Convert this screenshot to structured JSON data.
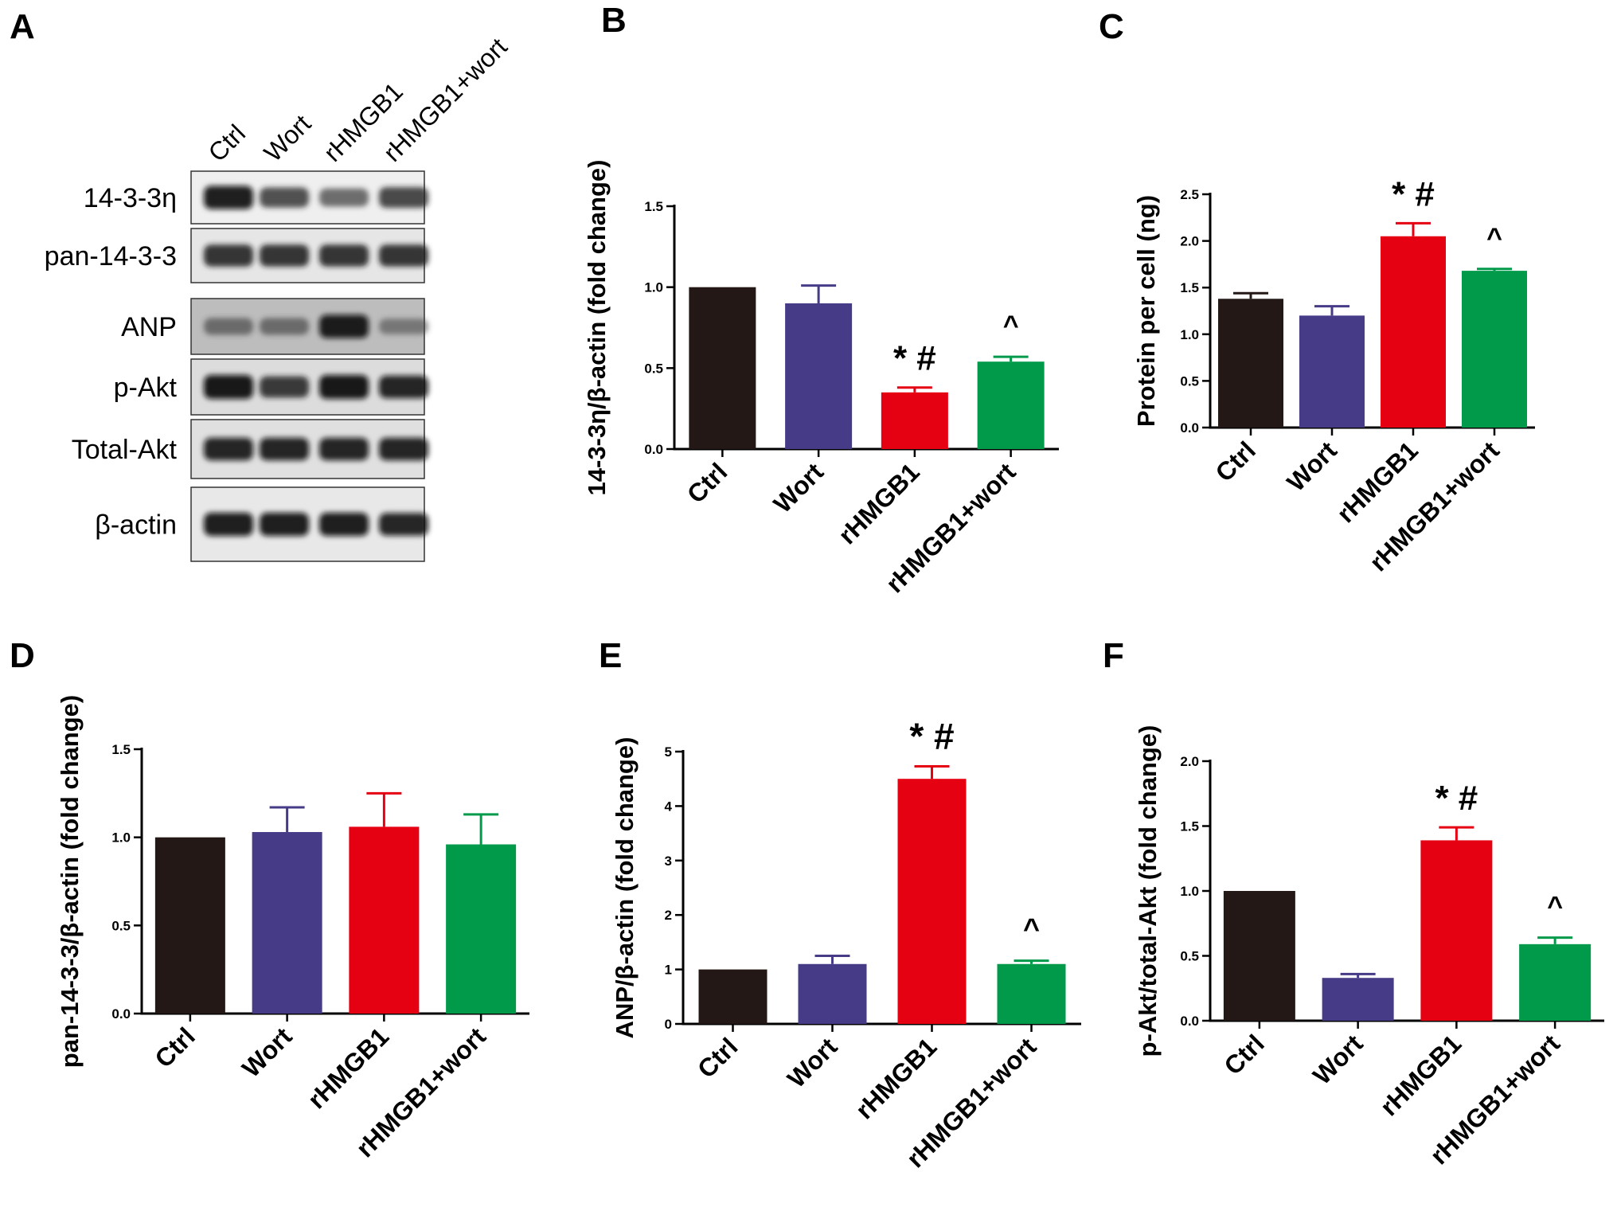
{
  "colors": {
    "Ctrl": "#231815",
    "Wort": "#453b86",
    "rHMGB1": "#e50012",
    "rHMGB1+wort": "#009a4a"
  },
  "blot": {
    "panel_label": "A",
    "lanes": [
      "Ctrl",
      "Wort",
      "rHMGB1",
      "rHMGB1+wort"
    ],
    "rows": [
      {
        "label": "14-3-3η",
        "intensity": [
          0.95,
          0.7,
          0.55,
          0.75
        ],
        "background": "#efefef"
      },
      {
        "label": "pan-14-3-3",
        "intensity": [
          0.85,
          0.85,
          0.85,
          0.85
        ],
        "background": "#e6e6e6"
      },
      {
        "label": "ANP",
        "intensity": [
          0.45,
          0.45,
          0.95,
          0.35
        ],
        "background": "#bdbdbd"
      },
      {
        "label": "p-Akt",
        "intensity": [
          1.0,
          0.8,
          1.0,
          0.9
        ],
        "background": "#dcdcdc"
      },
      {
        "label": "Total-Akt",
        "intensity": [
          0.9,
          0.9,
          0.9,
          0.9
        ],
        "background": "#e0e0e0"
      },
      {
        "label": "β-actin",
        "intensity": [
          0.95,
          0.95,
          0.95,
          0.9
        ],
        "background": "#e8e8e8"
      }
    ]
  },
  "chart_data": [
    {
      "panel_label": "B",
      "type": "bar",
      "categories": [
        "Ctrl",
        "Wort",
        "rHMGB1",
        "rHMGB1+wort"
      ],
      "values": [
        1.0,
        0.9,
        0.35,
        0.54
      ],
      "errors": [
        0,
        0.11,
        0.03,
        0.03
      ],
      "ylabel": "14-3-3η/β-actin (fold change)",
      "ylim": [
        0,
        1.5
      ],
      "yticks": [
        "0.0",
        "0.5",
        "1.0",
        "1.5"
      ],
      "annotations": [
        "",
        "",
        "* #",
        "^"
      ]
    },
    {
      "panel_label": "C",
      "type": "bar",
      "categories": [
        "Ctrl",
        "Wort",
        "rHMGB1",
        "rHMGB1+wort"
      ],
      "values": [
        1.38,
        1.2,
        2.05,
        1.68
      ],
      "errors": [
        0.06,
        0.1,
        0.14,
        0.02
      ],
      "ylabel": "Protein per cell (ng)",
      "ylim": [
        0,
        2.5
      ],
      "yticks": [
        "0.0",
        "0.5",
        "1.0",
        "1.5",
        "2.0",
        "2.5"
      ],
      "annotations": [
        "",
        "",
        "* #",
        "^"
      ]
    },
    {
      "panel_label": "D",
      "type": "bar",
      "categories": [
        "Ctrl",
        "Wort",
        "rHMGB1",
        "rHMGB1+wort"
      ],
      "values": [
        1.0,
        1.03,
        1.06,
        0.96
      ],
      "errors": [
        0,
        0.14,
        0.19,
        0.17
      ],
      "ylabel": "pan-14-3-3/β-actin (fold change)",
      "ylim": [
        0,
        1.5
      ],
      "yticks": [
        "0.0",
        "0.5",
        "1.0",
        "1.5"
      ],
      "annotations": [
        "",
        "",
        "",
        ""
      ]
    },
    {
      "panel_label": "E",
      "type": "bar",
      "categories": [
        "Ctrl",
        "Wort",
        "rHMGB1",
        "rHMGB1+wort"
      ],
      "values": [
        1.0,
        1.1,
        4.5,
        1.1
      ],
      "errors": [
        0,
        0.15,
        0.23,
        0.06
      ],
      "ylabel": "ANP/β-actin (fold change)",
      "ylim": [
        0,
        5
      ],
      "yticks": [
        "0",
        "1",
        "2",
        "3",
        "4",
        "5"
      ],
      "annotations": [
        "",
        "",
        "* #",
        "^"
      ]
    },
    {
      "panel_label": "F",
      "type": "bar",
      "categories": [
        "Ctrl",
        "Wort",
        "rHMGB1",
        "rHMGB1+wort"
      ],
      "values": [
        1.0,
        0.33,
        1.39,
        0.59
      ],
      "errors": [
        0,
        0.03,
        0.1,
        0.05
      ],
      "ylabel": "p-Akt/total-Akt (fold change)",
      "ylim": [
        0,
        2.0
      ],
      "yticks": [
        "0.0",
        "0.5",
        "1.0",
        "1.5",
        "2.0"
      ],
      "annotations": [
        "",
        "",
        "* #",
        "^"
      ]
    }
  ]
}
